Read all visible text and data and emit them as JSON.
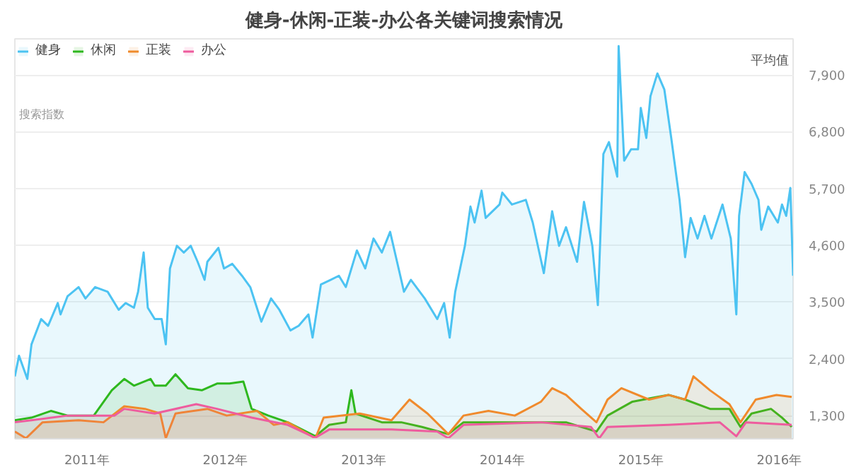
{
  "chart_data": {
    "type": "area",
    "title": "健身-休闲-正装-办公各关键词搜索情况",
    "ylabel": "搜索指数",
    "annotations": [
      "平均值"
    ],
    "xlim": [
      2010.48,
      2016.1
    ],
    "xticks": [
      {
        "value": 2011,
        "label": "2011年"
      },
      {
        "value": 2012,
        "label": "2012年"
      },
      {
        "value": 2013,
        "label": "2013年"
      },
      {
        "value": 2014,
        "label": "2014年"
      },
      {
        "value": 2015,
        "label": "2015年"
      },
      {
        "value": 2016,
        "label": "2016年"
      }
    ],
    "ylim": [
      850,
      8600
    ],
    "yticks": [
      {
        "value": 1300,
        "label": "1,300"
      },
      {
        "value": 2400,
        "label": "2,400"
      },
      {
        "value": 3500,
        "label": "3,500"
      },
      {
        "value": 4600,
        "label": "4,600"
      },
      {
        "value": 5700,
        "label": "5,700"
      },
      {
        "value": 6800,
        "label": "6,800"
      },
      {
        "value": 7900,
        "label": "7,900"
      }
    ],
    "grid": "y",
    "legend": "top left",
    "series": [
      {
        "name": "健身",
        "color": "#4cc3f2",
        "x": [
          2010.48,
          2010.51,
          2010.57,
          2010.6,
          2010.67,
          2010.72,
          2010.79,
          2010.81,
          2010.86,
          2010.94,
          2010.99,
          2011.06,
          2011.15,
          2011.23,
          2011.28,
          2011.34,
          2011.37,
          2011.41,
          2011.44,
          2011.49,
          2011.54,
          2011.57,
          2011.6,
          2011.65,
          2011.7,
          2011.75,
          2011.8,
          2011.85,
          2011.87,
          2011.95,
          2011.99,
          2012.05,
          2012.12,
          2012.18,
          2012.26,
          2012.33,
          2012.39,
          2012.47,
          2012.53,
          2012.6,
          2012.63,
          2012.69,
          2012.76,
          2012.82,
          2012.87,
          2012.95,
          2013.01,
          2013.07,
          2013.13,
          2013.19,
          2013.24,
          2013.29,
          2013.34,
          2013.44,
          2013.53,
          2013.58,
          2013.62,
          2013.66,
          2013.73,
          2013.77,
          2013.8,
          2013.85,
          2013.88,
          2013.98,
          2014.0,
          2014.07,
          2014.17,
          2014.22,
          2014.3,
          2014.36,
          2014.41,
          2014.46,
          2014.54,
          2014.59,
          2014.65,
          2014.69,
          2014.73,
          2014.77,
          2014.83,
          2014.84,
          2014.88,
          2014.93,
          2014.98,
          2015.0,
          2015.04,
          2015.07,
          2015.12,
          2015.17,
          2015.22,
          2015.28,
          2015.32,
          2015.36,
          2015.41,
          2015.46,
          2015.51,
          2015.59,
          2015.65,
          2015.69,
          2015.71,
          2015.75,
          2015.8,
          2015.85,
          2015.87,
          2015.92,
          2015.99,
          2016.02,
          2016.05,
          2016.08,
          2016.1
        ],
        "values": [
          2060,
          2460,
          2010,
          2680,
          3170,
          3040,
          3480,
          3260,
          3610,
          3790,
          3570,
          3790,
          3700,
          3350,
          3480,
          3390,
          3700,
          4460,
          3390,
          3170,
          3170,
          2680,
          4150,
          4590,
          4460,
          4590,
          4280,
          3930,
          4280,
          4550,
          4150,
          4240,
          4010,
          3790,
          3120,
          3570,
          3350,
          2950,
          3040,
          3260,
          2810,
          3840,
          3930,
          4010,
          3790,
          4500,
          4150,
          4730,
          4460,
          4860,
          4280,
          3700,
          3930,
          3570,
          3170,
          3480,
          2810,
          3700,
          4590,
          5350,
          5040,
          5660,
          5130,
          5390,
          5620,
          5390,
          5480,
          5040,
          4060,
          5260,
          4590,
          4950,
          4280,
          5440,
          4590,
          3440,
          6370,
          6600,
          5930,
          8460,
          6240,
          6460,
          6460,
          7260,
          6680,
          7490,
          7930,
          7620,
          6680,
          5480,
          4370,
          5130,
          4730,
          5170,
          4730,
          5390,
          4730,
          3260,
          5170,
          6020,
          5790,
          5480,
          4900,
          5350,
          5040,
          5390,
          5170,
          5710,
          4010
        ]
      },
      {
        "name": "休闲",
        "color": "#2eb81e",
        "x": [
          2010.48,
          2010.6,
          2010.74,
          2010.86,
          2011.05,
          2011.18,
          2011.27,
          2011.34,
          2011.46,
          2011.49,
          2011.57,
          2011.64,
          2011.73,
          2011.83,
          2011.94,
          2012.03,
          2012.13,
          2012.19,
          2012.31,
          2012.45,
          2012.65,
          2012.75,
          2012.87,
          2012.91,
          2012.94,
          2013.13,
          2013.27,
          2013.42,
          2013.61,
          2013.72,
          2014.09,
          2014.46,
          2014.68,
          2014.76,
          2014.94,
          2015.12,
          2015.2,
          2015.32,
          2015.5,
          2015.64,
          2015.72,
          2015.8,
          2015.94,
          2016.02,
          2016.09
        ],
        "values": [
          1210,
          1260,
          1390,
          1300,
          1300,
          1790,
          2010,
          1880,
          2010,
          1880,
          1880,
          2100,
          1830,
          1790,
          1920,
          1920,
          1960,
          1430,
          1300,
          1170,
          900,
          1120,
          1170,
          1790,
          1340,
          1170,
          1170,
          1080,
          940,
          1170,
          1170,
          1170,
          990,
          1300,
          1570,
          1660,
          1700,
          1610,
          1430,
          1430,
          1080,
          1340,
          1430,
          1260,
          1080
        ]
      },
      {
        "name": "正装",
        "color": "#f08a2c",
        "x": [
          2010.48,
          2010.56,
          2010.68,
          2010.94,
          2011.12,
          2011.27,
          2011.42,
          2011.53,
          2011.57,
          2011.64,
          2011.87,
          2012.01,
          2012.23,
          2012.35,
          2012.45,
          2012.65,
          2012.71,
          2012.97,
          2013.2,
          2013.33,
          2013.46,
          2013.61,
          2013.72,
          2013.9,
          2014.09,
          2014.28,
          2014.36,
          2014.46,
          2014.57,
          2014.68,
          2014.76,
          2014.86,
          2015.06,
          2015.2,
          2015.32,
          2015.38,
          2015.5,
          2015.64,
          2015.72,
          2015.83,
          2015.98,
          2016.09
        ],
        "values": [
          990,
          860,
          1170,
          1210,
          1170,
          1480,
          1430,
          1340,
          860,
          1340,
          1430,
          1300,
          1390,
          1120,
          1170,
          860,
          1260,
          1340,
          1210,
          1610,
          1340,
          940,
          1300,
          1390,
          1300,
          1570,
          1830,
          1700,
          1430,
          1170,
          1610,
          1830,
          1610,
          1700,
          1610,
          2060,
          1790,
          1520,
          1170,
          1610,
          1700,
          1660
        ]
      },
      {
        "name": "办公",
        "color": "#ee5c9e",
        "x": [
          2010.48,
          2010.6,
          2010.86,
          2011.2,
          2011.27,
          2011.49,
          2011.79,
          2011.94,
          2012.19,
          2012.45,
          2012.65,
          2012.75,
          2013.2,
          2013.53,
          2013.61,
          2013.72,
          2014.28,
          2014.64,
          2014.7,
          2014.76,
          2015.2,
          2015.57,
          2015.69,
          2015.76,
          2016.09
        ],
        "values": [
          1170,
          1210,
          1300,
          1300,
          1430,
          1340,
          1520,
          1430,
          1260,
          1120,
          870,
          1030,
          1030,
          990,
          860,
          1120,
          1170,
          1080,
          860,
          1080,
          1120,
          1170,
          900,
          1170,
          1120
        ]
      }
    ]
  }
}
